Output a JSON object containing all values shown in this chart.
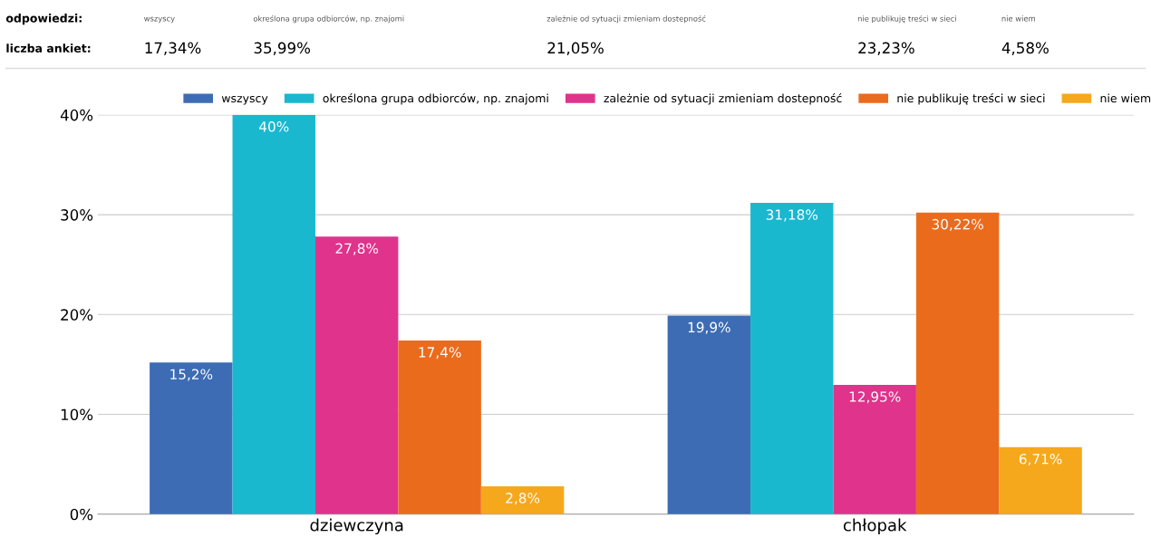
{
  "chart_data": {
    "type": "bar",
    "categories": [
      "dziewczyna",
      "chłopak"
    ],
    "series": [
      {
        "name": "wszyscy",
        "color": "#3d6cb4",
        "values": [
          15.2,
          19.9
        ],
        "value_labels": [
          "15,2%",
          "19,9%"
        ]
      },
      {
        "name": "określona grupa odbiorców, np. znajomi",
        "color": "#1ab8cf",
        "values": [
          40,
          31.18
        ],
        "value_labels": [
          "40%",
          "31,18%"
        ]
      },
      {
        "name": "zależnie od sytuacji zmieniam dostepność",
        "color": "#e0338c",
        "values": [
          27.8,
          12.95
        ],
        "value_labels": [
          "27,8%",
          "12,95%"
        ]
      },
      {
        "name": "nie publikuję treści w sieci",
        "color": "#eb6b1c",
        "values": [
          17.4,
          30.22
        ],
        "value_labels": [
          "17,4%",
          "30,22%"
        ]
      },
      {
        "name": "nie wiem",
        "color": "#f5a81c",
        "values": [
          2.8,
          6.71
        ],
        "value_labels": [
          "2,8%",
          "6,71%"
        ]
      }
    ],
    "ylim": [
      0,
      40
    ],
    "yticks": [
      {
        "value": 0,
        "label": "0%"
      },
      {
        "value": 10,
        "label": "10%"
      },
      {
        "value": 20,
        "label": "20%"
      },
      {
        "value": 30,
        "label": "30%"
      },
      {
        "value": 40,
        "label": "40%"
      }
    ],
    "grid": "y",
    "legend": "top",
    "annotations": [
      "odpowiedzi:",
      "liczba ankiet:",
      "wszyscy",
      "17,34%",
      "określona grupa odbiorców, np. znajomi",
      "35,99%",
      "zależnie od sytuacji zmieniam dostepność",
      "21,05%",
      "nie publikuję treści w sieci",
      "23,23%",
      "nie wiem",
      "4,58%"
    ]
  }
}
